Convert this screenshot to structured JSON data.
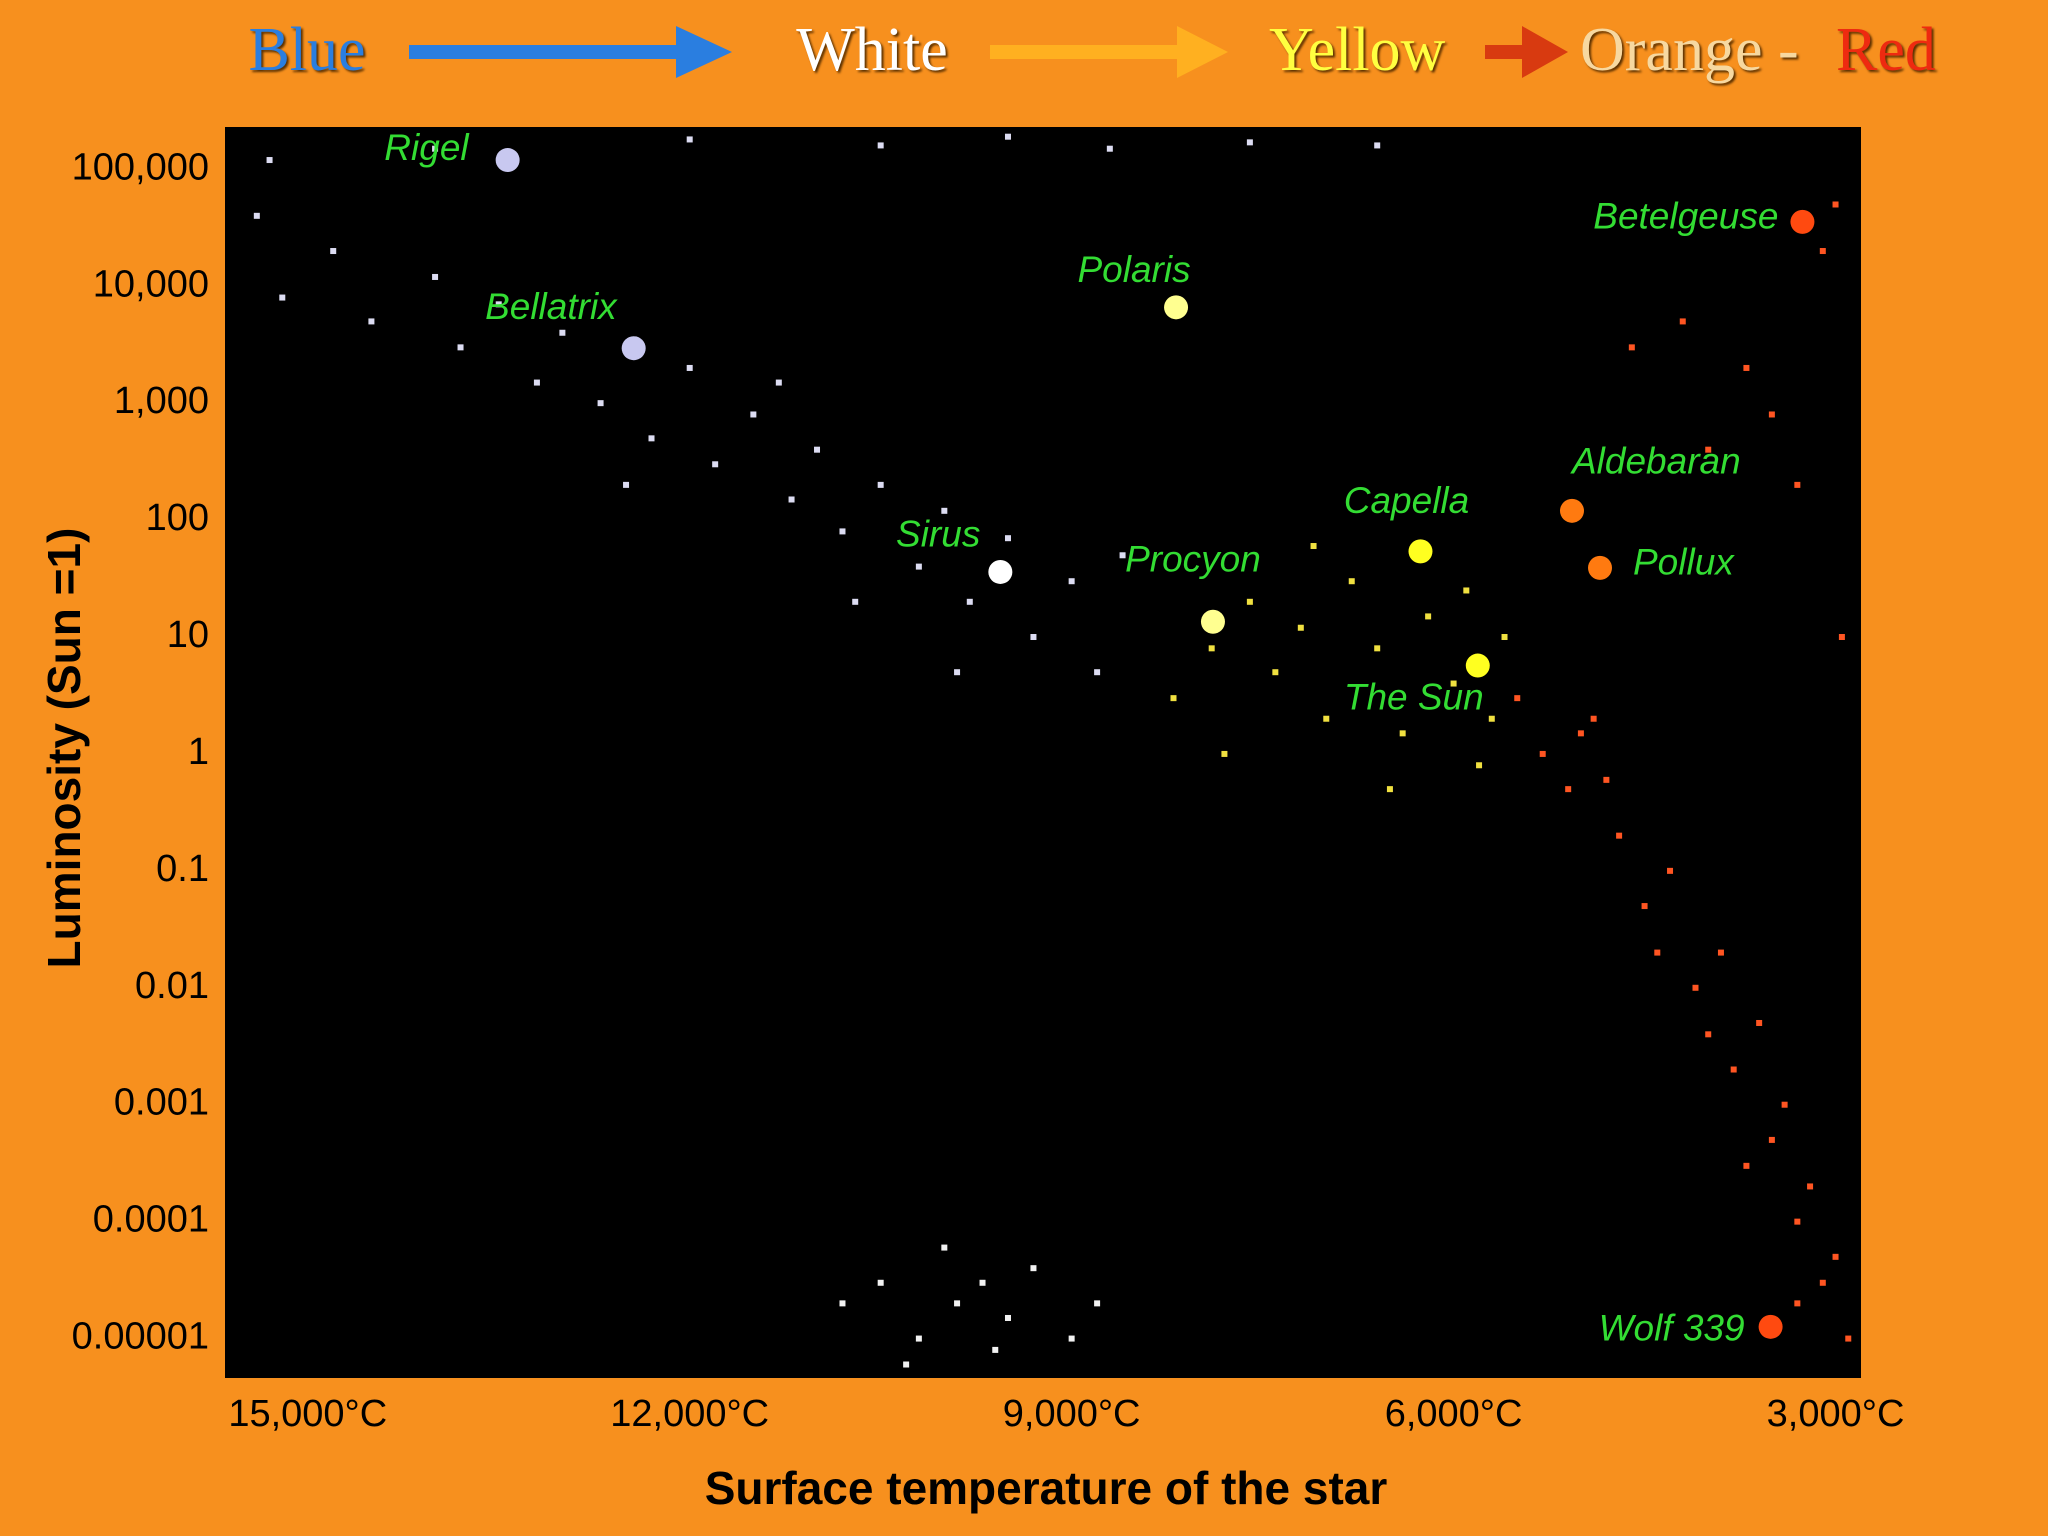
{
  "chart_data": {
    "type": "scatter",
    "header": [
      {
        "text": "Blue",
        "color": "#2a7ee0"
      },
      {
        "text": "White",
        "color": "#ffffff"
      },
      {
        "text": "Yellow",
        "color": "#ffff40"
      },
      {
        "text": "Orange -",
        "color": "#f7d8a0"
      },
      {
        "text": "Red",
        "color": "#ee2a10"
      }
    ],
    "xlabel": "Surface temperature of the star",
    "ylabel": "Luminosity (Sun =1)",
    "xlim": [
      15650,
      2800
    ],
    "ylim": [
      4.6e-06,
      230000
    ],
    "yscale": "log",
    "xticks": [
      {
        "value": 15000,
        "label": "15,000°C"
      },
      {
        "value": 12000,
        "label": "12,000°C"
      },
      {
        "value": 9000,
        "label": "9,000°C"
      },
      {
        "value": 6000,
        "label": "6,000°C"
      },
      {
        "value": 3000,
        "label": "3,000°C"
      }
    ],
    "yticks": [
      {
        "value": 100000,
        "label": "100,000"
      },
      {
        "value": 10000,
        "label": "10,000"
      },
      {
        "value": 1000,
        "label": "1,000"
      },
      100,
      10,
      1,
      0.1,
      0.01,
      0.001,
      0.0001,
      1e-05
    ],
    "series": [
      {
        "color": "#dcdcf2",
        "x": [
          15400,
          15200,
          14800,
          14500,
          14000,
          13800,
          13500,
          13200,
          13000,
          12700,
          12300,
          12000,
          11800,
          11500,
          11200,
          11000,
          10800,
          10500,
          10200,
          10000,
          9800,
          9500,
          9300,
          9000,
          8800,
          8600,
          10700,
          9900,
          11300,
          12500,
          14000,
          12000,
          10500,
          9500,
          8700,
          7600,
          6600,
          15300
        ],
        "y": [
          40000,
          8000,
          20000,
          5000,
          12000,
          3000,
          7000,
          1500,
          4000,
          1000,
          500,
          2000,
          300,
          800,
          150,
          400,
          80,
          200,
          40,
          120,
          20,
          70,
          10,
          30,
          5,
          50,
          20,
          5,
          1500,
          200,
          150000,
          180000,
          160000,
          190000,
          150000,
          170000,
          160000,
          120000
        ]
      },
      {
        "color": "#f2f2f2",
        "x": [
          10500,
          10200,
          9900,
          9600,
          9300,
          9000,
          10800,
          10000,
          9500,
          8800,
          10300,
          9700
        ],
        "y": [
          3e-05,
          1e-05,
          2e-05,
          8e-06,
          4e-05,
          1e-05,
          2e-05,
          6e-05,
          1.5e-05,
          2e-05,
          6e-06,
          3e-05
        ]
      },
      {
        "color": "#f0e040",
        "x": [
          8200,
          7900,
          7600,
          7400,
          7200,
          7000,
          6800,
          6600,
          6400,
          6200,
          6000,
          5800,
          5600,
          7800,
          7100,
          6500,
          5900,
          5700
        ],
        "y": [
          3,
          8,
          20,
          5,
          12,
          2,
          30,
          8,
          1.5,
          15,
          4,
          0.8,
          10,
          1,
          60,
          0.5,
          25,
          2
        ]
      },
      {
        "color": "#ff5522",
        "x": [
          5500,
          5300,
          5100,
          4900,
          4700,
          4500,
          4300,
          4100,
          3900,
          3800,
          3600,
          3500,
          3400,
          3300,
          3200,
          3100,
          3000,
          2900,
          3300,
          3700,
          4000,
          4400,
          4800,
          5000,
          4200,
          3700,
          3500,
          3000,
          3300,
          4600,
          2950,
          4000,
          3100
        ],
        "y": [
          3,
          1,
          0.5,
          2,
          0.2,
          0.05,
          0.1,
          0.01,
          0.02,
          0.002,
          0.005,
          0.0005,
          0.001,
          0.0001,
          0.0002,
          3e-05,
          5e-05,
          1e-05,
          2e-05,
          0.0003,
          0.004,
          0.02,
          0.6,
          1.5,
          5000,
          2000,
          800,
          50000,
          200,
          3000,
          10,
          400,
          20000
        ]
      }
    ],
    "stars": [
      {
        "name": "Rigel",
        "x": 13430,
        "y": 120000,
        "color": "#c8c8f0"
      },
      {
        "name": "Bellatrix",
        "x": 12440,
        "y": 2950,
        "color": "#c8c8f0"
      },
      {
        "name": "Polaris",
        "x": 8180,
        "y": 6600,
        "color": "#ffff90"
      },
      {
        "name": "Sirus",
        "x": 9560,
        "y": 36,
        "color": "#ffffff"
      },
      {
        "name": "Procyon",
        "x": 7890,
        "y": 13.5,
        "color": "#ffff90"
      },
      {
        "name": "Capella",
        "x": 6260,
        "y": 54,
        "color": "#ffff20"
      },
      {
        "name": "The Sun",
        "x": 5810,
        "y": 5.7,
        "color": "#ffff20"
      },
      {
        "name": "Aldebaran",
        "x": 5070,
        "y": 120,
        "color": "#ff7a10"
      },
      {
        "name": "Pollux",
        "x": 4850,
        "y": 39,
        "color": "#ff7a10"
      },
      {
        "name": "Betelgeuse",
        "x": 3260,
        "y": 35500,
        "color": "#ff4a10"
      },
      {
        "name": "Wolf 339",
        "x": 3510,
        "y": 1.26e-05,
        "color": "#ff4a10"
      }
    ]
  }
}
